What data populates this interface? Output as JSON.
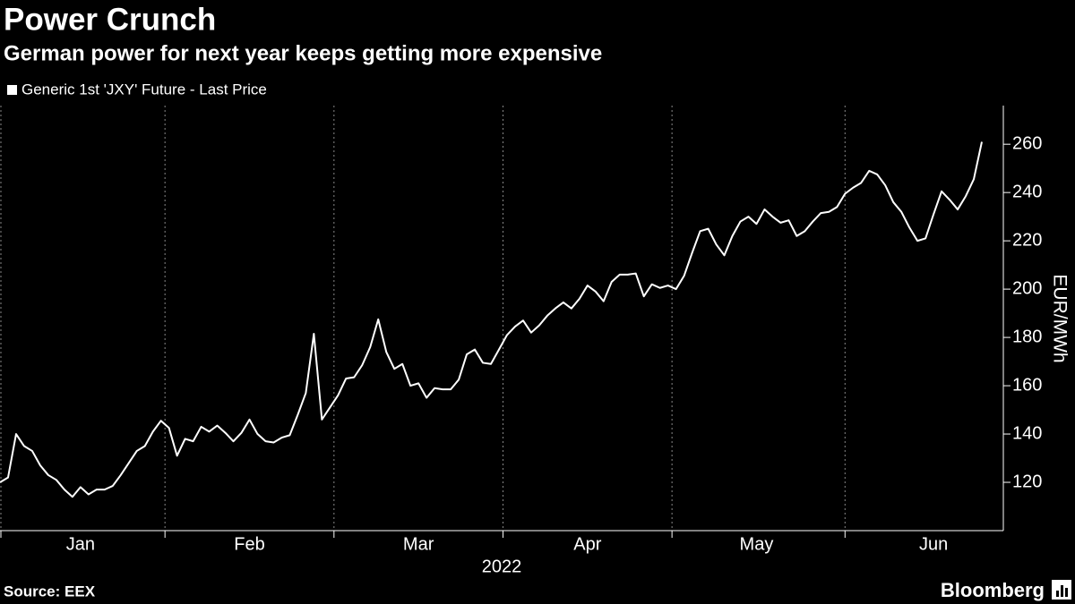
{
  "chart_data": {
    "type": "line",
    "title": "Power Crunch",
    "subtitle": "German power for next year keeps getting more expensive",
    "legend": "Generic 1st 'JXY' Future - Last Price",
    "y_label": "EUR/MWh",
    "x_label": "2022",
    "source": "Source: EEX",
    "brand": "Bloomberg",
    "color": "#ffffff",
    "grid": "x",
    "ylim": [
      100,
      276
    ],
    "yticks": [
      120,
      140,
      160,
      180,
      200,
      220,
      240,
      260
    ],
    "categories": [
      null,
      null,
      null,
      null,
      null,
      null,
      null,
      null,
      null,
      null,
      "Jan",
      null,
      null,
      null,
      null,
      null,
      null,
      null,
      null,
      null,
      null,
      null,
      null,
      null,
      null,
      null,
      null,
      null,
      null,
      null,
      null,
      "Feb",
      null,
      null,
      null,
      null,
      null,
      null,
      null,
      null,
      null,
      null,
      null,
      null,
      null,
      null,
      null,
      null,
      null,
      null,
      null,
      null,
      "Mar",
      null,
      null,
      null,
      null,
      null,
      null,
      null,
      null,
      null,
      null,
      null,
      null,
      null,
      null,
      null,
      null,
      null,
      null,
      null,
      null,
      "Apr",
      null,
      null,
      null,
      null,
      null,
      null,
      null,
      null,
      null,
      null,
      null,
      null,
      null,
      null,
      null,
      null,
      null,
      null,
      null,
      null,
      "May",
      null,
      null,
      null,
      null,
      null,
      null,
      null,
      null,
      null,
      null,
      null,
      null,
      null,
      null,
      null,
      null,
      null,
      null,
      null,
      null,
      null,
      "Jun",
      null,
      null,
      null,
      null,
      null,
      null
    ],
    "values": [
      120,
      122,
      140,
      135,
      133,
      127,
      123,
      121,
      117,
      114,
      118,
      115,
      117,
      117,
      118.5,
      123,
      128,
      133,
      135,
      141,
      145.5,
      142.5,
      131,
      138,
      137,
      143,
      141,
      143.5,
      140.5,
      137,
      140.5,
      146,
      140,
      137,
      136.5,
      138.5,
      139.5,
      148,
      157,
      181.5,
      146,
      151,
      156,
      163,
      163.5,
      168.5,
      176,
      187.5,
      174,
      167,
      169,
      160,
      161,
      155,
      159,
      158.5,
      158.5,
      162.5,
      173,
      175,
      169.5,
      169,
      175,
      181,
      184.5,
      187,
      182,
      185,
      189,
      192,
      194.5,
      192,
      196,
      201.5,
      199,
      195,
      203,
      206,
      206,
      206.5,
      197,
      202,
      200.5,
      201.5,
      200,
      205.5,
      215,
      224,
      225,
      218.5,
      214,
      222,
      228,
      230,
      227,
      233,
      230,
      227.5,
      228.5,
      222,
      224,
      228,
      231.5,
      232,
      234,
      239.5,
      242,
      244,
      249,
      247.5,
      243,
      236,
      232,
      225.5,
      220,
      221,
      231,
      240.5,
      237,
      233,
      238.5,
      245.5,
      261
    ]
  }
}
